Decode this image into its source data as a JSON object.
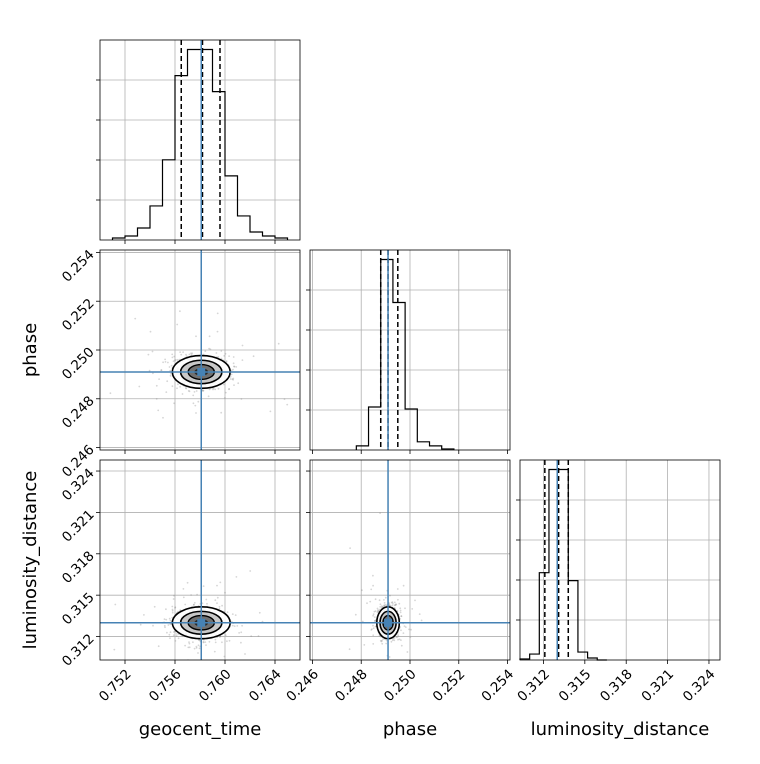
{
  "chart_data": {
    "type": "corner",
    "parameters": [
      {
        "name": "geocent_time",
        "ticks": [
          "0.752",
          "0.756",
          "0.760",
          "0.764"
        ],
        "tick_values": [
          0.752,
          0.756,
          0.76,
          0.764
        ],
        "range": [
          0.75,
          0.766
        ],
        "truth": 0.7581,
        "quantiles": [
          0.7565,
          0.7582,
          0.7596
        ],
        "hist_bins": [
          0.751,
          0.752,
          0.753,
          0.754,
          0.755,
          0.756,
          0.757,
          0.758,
          0.759,
          0.76,
          0.761,
          0.762,
          0.763,
          0.764
        ],
        "hist_counts": [
          0.01,
          0.02,
          0.06,
          0.17,
          0.4,
          0.82,
          0.95,
          0.95,
          0.74,
          0.32,
          0.12,
          0.04,
          0.02,
          0.01
        ]
      },
      {
        "name": "phase",
        "ticks": [
          "0.246",
          "0.248",
          "0.250",
          "0.252",
          "0.254"
        ],
        "tick_values": [
          0.246,
          0.248,
          0.25,
          0.252,
          0.254
        ],
        "range": [
          0.2459,
          0.2541
        ],
        "truth": 0.2491,
        "quantiles": [
          0.2488,
          0.2491,
          0.2495
        ],
        "hist_bins": [
          0.2478,
          0.2483,
          0.2488,
          0.2493,
          0.2498,
          0.2503,
          0.2508,
          0.2513
        ],
        "hist_counts": [
          0.02,
          0.21,
          0.93,
          0.72,
          0.2,
          0.04,
          0.02,
          0.005
        ]
      },
      {
        "name": "luminosity_distance",
        "ticks": [
          "0.312",
          "0.315",
          "0.318",
          "0.321",
          "0.324"
        ],
        "tick_values": [
          0.312,
          0.315,
          0.318,
          0.321,
          0.324
        ],
        "range": [
          0.3103,
          0.3248
        ],
        "truth": 0.313,
        "quantiles": [
          0.3121,
          0.3131,
          0.3138
        ],
        "hist_bins": [
          0.3103,
          0.311,
          0.3117,
          0.3124,
          0.3131,
          0.3138,
          0.3145,
          0.3152,
          0.3159
        ],
        "hist_counts": [
          0.005,
          0.03,
          0.44,
          0.96,
          0.96,
          0.4,
          0.04,
          0.01,
          0.0
        ]
      }
    ],
    "pairs": [
      {
        "x": "geocent_time",
        "y": "phase",
        "center": [
          0.7581,
          0.2491
        ],
        "sigma": [
          0.0011,
          0.00032
        ]
      },
      {
        "x": "geocent_time",
        "y": "luminosity_distance",
        "center": [
          0.7581,
          0.313
        ],
        "sigma": [
          0.0011,
          0.00055
        ]
      },
      {
        "x": "phase",
        "y": "luminosity_distance",
        "center": [
          0.2491,
          0.313
        ],
        "sigma": [
          0.00022,
          0.00055
        ]
      }
    ],
    "colors": {
      "truth": "#4682b4",
      "hist": "#000000",
      "grid": "#b0b0b0",
      "scatter": "#8a8a8a"
    },
    "grid": true
  }
}
